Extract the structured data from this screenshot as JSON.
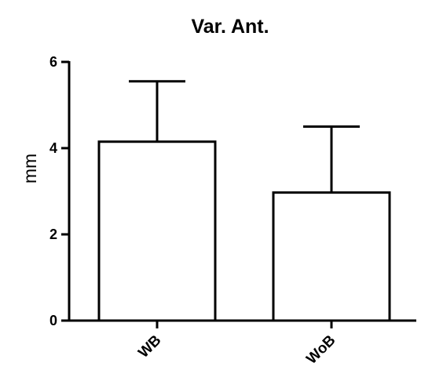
{
  "chart_data": {
    "type": "bar",
    "title": "Var. Ant.",
    "xlabel": "",
    "ylabel": "mm",
    "categories": [
      "WB",
      "WoB"
    ],
    "values": [
      4.15,
      2.97
    ],
    "error_upper": [
      5.55,
      4.5
    ],
    "ylim": [
      0,
      6
    ],
    "yticks": [
      0,
      2,
      4,
      6
    ],
    "ytick_labels": [
      "0",
      "2",
      "4",
      "6"
    ],
    "grid": false,
    "legend": "none",
    "colors": {
      "bar_fill": "#ffffff",
      "bar_stroke": "#000000",
      "axis": "#000000"
    }
  }
}
